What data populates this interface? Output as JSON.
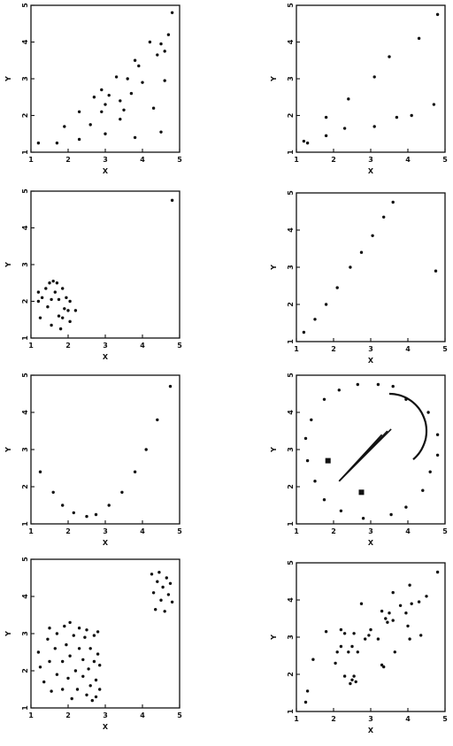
{
  "chart_data": [
    {
      "id": "p1",
      "type": "scatter",
      "xlabel": "X",
      "ylabel": "Y",
      "xlim": [
        1,
        5
      ],
      "ylim": [
        1,
        5
      ],
      "xticks": [
        "1",
        "2",
        "3",
        "4",
        "5"
      ],
      "yticks": [
        "1",
        "2",
        "3",
        "4",
        "5"
      ],
      "points": [
        [
          1.2,
          1.25
        ],
        [
          1.7,
          1.25
        ],
        [
          1.9,
          1.7
        ],
        [
          2.3,
          1.35
        ],
        [
          2.3,
          2.1
        ],
        [
          2.6,
          1.75
        ],
        [
          2.7,
          2.5
        ],
        [
          2.9,
          2.1
        ],
        [
          2.9,
          2.7
        ],
        [
          3.0,
          2.3
        ],
        [
          3.0,
          1.5
        ],
        [
          3.1,
          2.55
        ],
        [
          3.3,
          3.05
        ],
        [
          3.4,
          2.4
        ],
        [
          3.4,
          1.9
        ],
        [
          3.5,
          2.15
        ],
        [
          3.6,
          3.0
        ],
        [
          3.7,
          2.6
        ],
        [
          3.8,
          3.5
        ],
        [
          3.8,
          1.4
        ],
        [
          3.9,
          3.35
        ],
        [
          4.0,
          2.9
        ],
        [
          4.2,
          4.0
        ],
        [
          4.3,
          2.2
        ],
        [
          4.4,
          3.65
        ],
        [
          4.5,
          1.55
        ],
        [
          4.5,
          3.95
        ],
        [
          4.6,
          2.95
        ],
        [
          4.6,
          3.75
        ],
        [
          4.7,
          4.2
        ],
        [
          4.8,
          4.8
        ]
      ]
    },
    {
      "id": "p2",
      "type": "scatter",
      "xlabel": "X",
      "ylabel": "Y",
      "xlim": [
        1,
        5
      ],
      "ylim": [
        1,
        5
      ],
      "xticks": [
        "1",
        "2",
        "3",
        "4",
        "5"
      ],
      "yticks": [
        "1",
        "2",
        "3",
        "4",
        "5"
      ],
      "points": [
        [
          1.2,
          1.3
        ],
        [
          1.3,
          1.25
        ],
        [
          1.8,
          1.45
        ],
        [
          1.8,
          1.95
        ],
        [
          2.3,
          1.65
        ],
        [
          2.4,
          2.45
        ],
        [
          3.1,
          3.05
        ],
        [
          3.1,
          1.7
        ],
        [
          3.5,
          3.6
        ],
        [
          3.7,
          1.95
        ],
        [
          4.1,
          2.0
        ],
        [
          4.3,
          4.1
        ],
        [
          4.7,
          2.3
        ],
        [
          4.8,
          4.75
        ]
      ]
    },
    {
      "id": "p3",
      "type": "scatter",
      "xlabel": "X",
      "ylabel": "Y",
      "xlim": [
        1,
        5
      ],
      "ylim": [
        1,
        5
      ],
      "xticks": [
        "1",
        "2",
        "3",
        "4",
        "5"
      ],
      "yticks": [
        "1",
        "2",
        "3",
        "4",
        "5"
      ],
      "points": [
        [
          1.2,
          2.0
        ],
        [
          1.2,
          2.25
        ],
        [
          1.25,
          1.55
        ],
        [
          1.3,
          2.1
        ],
        [
          1.4,
          2.35
        ],
        [
          1.45,
          1.85
        ],
        [
          1.5,
          2.5
        ],
        [
          1.55,
          2.05
        ],
        [
          1.55,
          1.35
        ],
        [
          1.6,
          2.55
        ],
        [
          1.65,
          2.25
        ],
        [
          1.7,
          2.5
        ],
        [
          1.75,
          1.6
        ],
        [
          1.75,
          2.05
        ],
        [
          1.8,
          1.25
        ],
        [
          1.85,
          1.55
        ],
        [
          1.85,
          2.35
        ],
        [
          1.9,
          1.8
        ],
        [
          1.95,
          2.1
        ],
        [
          2.0,
          1.75
        ],
        [
          2.05,
          1.45
        ],
        [
          2.05,
          2.0
        ],
        [
          2.2,
          1.75
        ],
        [
          4.8,
          4.75
        ]
      ]
    },
    {
      "id": "p4",
      "type": "scatter",
      "xlabel": "X",
      "ylabel": "Y",
      "xlim": [
        1,
        5
      ],
      "ylim": [
        1,
        5
      ],
      "xticks": [
        "1",
        "2",
        "3",
        "4",
        "5"
      ],
      "yticks": [
        "1",
        "2",
        "3",
        "4",
        "5"
      ],
      "points": [
        [
          1.2,
          1.25
        ],
        [
          1.5,
          1.6
        ],
        [
          1.8,
          2.0
        ],
        [
          2.1,
          2.45
        ],
        [
          2.45,
          3.0
        ],
        [
          2.75,
          3.4
        ],
        [
          3.05,
          3.85
        ],
        [
          3.35,
          4.35
        ],
        [
          3.6,
          4.75
        ],
        [
          4.75,
          2.9
        ]
      ]
    },
    {
      "id": "p5",
      "type": "scatter",
      "xlabel": "X",
      "ylabel": "Y",
      "xlim": [
        1,
        5
      ],
      "ylim": [
        1,
        5
      ],
      "xticks": [
        "1",
        "2",
        "3",
        "4",
        "5"
      ],
      "yticks": [
        "1",
        "2",
        "3",
        "4",
        "5"
      ],
      "points": [
        [
          1.25,
          2.4
        ],
        [
          1.6,
          1.85
        ],
        [
          1.85,
          1.5
        ],
        [
          2.15,
          1.3
        ],
        [
          2.5,
          1.2
        ],
        [
          2.75,
          1.25
        ],
        [
          3.1,
          1.5
        ],
        [
          3.45,
          1.85
        ],
        [
          3.8,
          2.4
        ],
        [
          4.1,
          3.0
        ],
        [
          4.4,
          3.8
        ],
        [
          4.75,
          4.7
        ]
      ]
    },
    {
      "id": "p6",
      "type": "scatter",
      "xlabel": "X",
      "ylabel": "Y",
      "xlim": [
        1,
        5
      ],
      "ylim": [
        1,
        5
      ],
      "xticks": [
        "1",
        "2",
        "3",
        "4",
        "5"
      ],
      "yticks": [
        "1",
        "2",
        "3",
        "4",
        "5"
      ],
      "points": [
        [
          1.25,
          3.3
        ],
        [
          1.3,
          2.7
        ],
        [
          1.4,
          3.8
        ],
        [
          1.5,
          2.15
        ],
        [
          1.75,
          4.35
        ],
        [
          1.75,
          1.65
        ],
        [
          2.15,
          4.6
        ],
        [
          2.2,
          1.35
        ],
        [
          2.65,
          4.75
        ],
        [
          2.8,
          1.15
        ],
        [
          3.2,
          4.75
        ],
        [
          3.55,
          1.25
        ],
        [
          3.6,
          4.7
        ],
        [
          3.95,
          4.35
        ],
        [
          3.95,
          1.45
        ],
        [
          4.4,
          1.9
        ],
        [
          4.55,
          4.0
        ],
        [
          4.6,
          2.4
        ],
        [
          4.8,
          3.4
        ],
        [
          4.8,
          2.85
        ]
      ],
      "squares": [
        [
          1.85,
          2.7
        ],
        [
          2.75,
          1.85
        ]
      ],
      "arc": {
        "center": [
          3.5,
          3.5
        ],
        "radius": 1.0,
        "start_deg": -50,
        "end_deg": 90
      },
      "rays": {
        "origin": [
          2.15,
          2.15
        ],
        "ends": [
          [
            3.3,
            3.4
          ],
          [
            3.45,
            3.5
          ],
          [
            3.55,
            3.55
          ]
        ]
      }
    },
    {
      "id": "p7",
      "type": "scatter",
      "xlabel": "X",
      "ylabel": "Y",
      "xlim": [
        1,
        5
      ],
      "ylim": [
        1,
        5
      ],
      "xticks": [
        "1",
        "2",
        "3",
        "4",
        "5"
      ],
      "yticks": [
        "1",
        "2",
        "3",
        "4",
        "5"
      ],
      "points": [
        [
          1.2,
          2.5
        ],
        [
          1.25,
          2.1
        ],
        [
          1.35,
          1.7
        ],
        [
          1.45,
          2.85
        ],
        [
          1.5,
          2.25
        ],
        [
          1.5,
          3.15
        ],
        [
          1.55,
          1.45
        ],
        [
          1.65,
          2.6
        ],
        [
          1.7,
          1.9
        ],
        [
          1.7,
          3.0
        ],
        [
          1.85,
          2.25
        ],
        [
          1.85,
          1.5
        ],
        [
          1.9,
          3.2
        ],
        [
          1.95,
          2.7
        ],
        [
          2.0,
          1.8
        ],
        [
          2.05,
          3.3
        ],
        [
          2.05,
          2.4
        ],
        [
          2.1,
          1.25
        ],
        [
          2.15,
          2.95
        ],
        [
          2.2,
          2.0
        ],
        [
          2.25,
          1.5
        ],
        [
          2.3,
          2.6
        ],
        [
          2.3,
          3.15
        ],
        [
          2.4,
          1.85
        ],
        [
          2.4,
          2.3
        ],
        [
          2.45,
          2.9
        ],
        [
          2.5,
          1.35
        ],
        [
          2.5,
          3.1
        ],
        [
          2.55,
          2.05
        ],
        [
          2.6,
          1.6
        ],
        [
          2.6,
          2.6
        ],
        [
          2.65,
          1.2
        ],
        [
          2.7,
          2.95
        ],
        [
          2.7,
          2.25
        ],
        [
          2.75,
          1.75
        ],
        [
          2.75,
          1.3
        ],
        [
          2.8,
          3.05
        ],
        [
          2.8,
          2.45
        ],
        [
          2.85,
          1.5
        ],
        [
          2.85,
          2.15
        ],
        [
          4.25,
          4.6
        ],
        [
          4.3,
          4.1
        ],
        [
          4.35,
          3.65
        ],
        [
          4.4,
          4.4
        ],
        [
          4.45,
          4.65
        ],
        [
          4.5,
          3.9
        ],
        [
          4.55,
          4.25
        ],
        [
          4.6,
          3.6
        ],
        [
          4.65,
          4.5
        ],
        [
          4.7,
          4.05
        ],
        [
          4.75,
          4.35
        ],
        [
          4.8,
          3.85
        ]
      ]
    },
    {
      "id": "p8",
      "type": "scatter",
      "xlabel": "X",
      "ylabel": "Y",
      "xlim": [
        1,
        5
      ],
      "ylim": [
        1,
        5
      ],
      "xticks": [
        "1",
        "2",
        "3",
        "4",
        "5"
      ],
      "yticks": [
        "1",
        "2",
        "3",
        "4",
        "5"
      ],
      "points": [
        [
          1.25,
          1.25
        ],
        [
          1.3,
          1.55
        ],
        [
          1.45,
          2.4
        ],
        [
          1.8,
          3.15
        ],
        [
          2.05,
          2.3
        ],
        [
          2.1,
          2.6
        ],
        [
          2.2,
          2.75
        ],
        [
          2.2,
          3.2
        ],
        [
          2.3,
          1.95
        ],
        [
          2.3,
          3.1
        ],
        [
          2.4,
          2.6
        ],
        [
          2.45,
          1.75
        ],
        [
          2.5,
          1.85
        ],
        [
          2.5,
          2.75
        ],
        [
          2.55,
          1.95
        ],
        [
          2.55,
          3.1
        ],
        [
          2.6,
          1.8
        ],
        [
          2.65,
          2.6
        ],
        [
          2.75,
          3.9
        ],
        [
          2.85,
          2.95
        ],
        [
          2.95,
          3.05
        ],
        [
          3.0,
          3.2
        ],
        [
          3.2,
          2.95
        ],
        [
          3.3,
          2.25
        ],
        [
          3.3,
          3.7
        ],
        [
          3.35,
          2.2
        ],
        [
          3.4,
          3.5
        ],
        [
          3.45,
          3.4
        ],
        [
          3.5,
          3.65
        ],
        [
          3.6,
          3.45
        ],
        [
          3.6,
          4.2
        ],
        [
          3.65,
          2.6
        ],
        [
          3.8,
          3.85
        ],
        [
          3.95,
          3.65
        ],
        [
          4.0,
          3.3
        ],
        [
          4.05,
          2.95
        ],
        [
          4.05,
          4.4
        ],
        [
          4.1,
          3.9
        ],
        [
          4.3,
          3.95
        ],
        [
          4.35,
          3.05
        ],
        [
          4.5,
          4.1
        ],
        [
          4.8,
          4.75
        ]
      ]
    }
  ]
}
